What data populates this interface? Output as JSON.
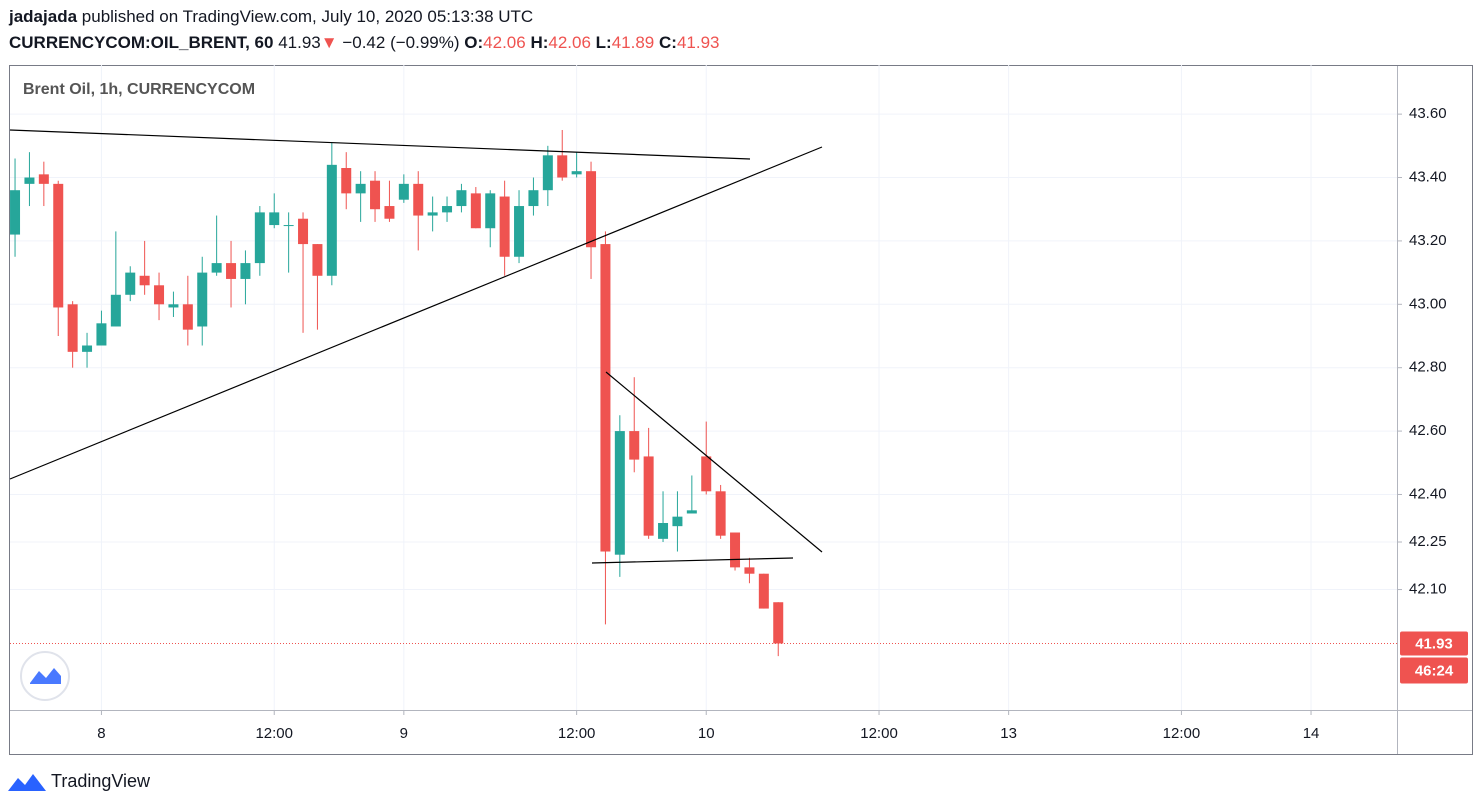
{
  "header": {
    "author": "jadajada",
    "published": "published on TradingView.com, July 10, 2020 05:13:38 UTC",
    "symbol": "CURRENCYCOM:OIL_BRENT, 60",
    "last": "41.93",
    "arrow": "▼",
    "change": "−0.42 (−0.99%)",
    "o_label": "O:",
    "o": "42.06",
    "h_label": "H:",
    "h": "42.06",
    "l_label": "L:",
    "l": "41.89",
    "c_label": "C:",
    "c": "41.93"
  },
  "chart_data": {
    "type": "candlestick",
    "title": "Brent Oil, 1h, CURRENCYCOM",
    "up_color": "#26a69a",
    "down_color": "#ef5350",
    "grid": true,
    "x": [
      0,
      1,
      2,
      3,
      4,
      5,
      6,
      7,
      8,
      9,
      10,
      11,
      12,
      13,
      14,
      15,
      16,
      17,
      18,
      19,
      20,
      21,
      22,
      23,
      24,
      25,
      26,
      27,
      28,
      29,
      30,
      31,
      32,
      33,
      34,
      35,
      36,
      37,
      38,
      39,
      40,
      41,
      42,
      43,
      44,
      45,
      46,
      47,
      48,
      49,
      50,
      51,
      52,
      53
    ],
    "open": [
      43.22,
      43.38,
      43.41,
      43.38,
      43.0,
      42.85,
      42.87,
      42.93,
      43.03,
      43.09,
      43.06,
      42.99,
      43.0,
      42.93,
      43.1,
      43.13,
      43.08,
      43.13,
      43.25,
      43.25,
      43.27,
      43.19,
      43.09,
      43.43,
      43.35,
      43.39,
      43.31,
      43.33,
      43.38,
      43.28,
      43.29,
      43.31,
      43.35,
      43.24,
      43.34,
      43.15,
      43.31,
      43.36,
      43.47,
      43.41,
      43.42,
      43.19,
      42.21,
      42.6,
      42.52,
      42.26,
      42.3,
      42.34,
      42.52,
      42.41,
      42.28,
      42.17,
      42.15,
      42.06
    ],
    "high": [
      43.46,
      43.48,
      43.45,
      43.39,
      43.01,
      42.91,
      42.98,
      43.23,
      43.12,
      43.2,
      43.1,
      43.04,
      43.09,
      43.15,
      43.28,
      43.2,
      43.17,
      43.31,
      43.35,
      43.29,
      43.29,
      43.19,
      43.51,
      43.48,
      43.42,
      43.42,
      43.39,
      43.41,
      43.42,
      43.34,
      43.34,
      43.38,
      43.37,
      43.36,
      43.39,
      43.36,
      43.4,
      43.5,
      43.55,
      43.48,
      43.45,
      43.23,
      42.65,
      42.77,
      42.61,
      42.41,
      42.41,
      42.46,
      42.63,
      42.43,
      42.28,
      42.2,
      42.15,
      42.06
    ],
    "low": [
      43.15,
      43.31,
      43.31,
      42.9,
      42.8,
      42.8,
      42.87,
      42.93,
      43.01,
      43.03,
      42.95,
      42.96,
      42.87,
      42.87,
      43.09,
      42.99,
      43.0,
      43.09,
      43.24,
      43.1,
      42.91,
      42.92,
      43.06,
      43.3,
      43.26,
      43.26,
      43.26,
      43.32,
      43.17,
      43.23,
      43.26,
      43.29,
      43.24,
      43.18,
      43.09,
      43.13,
      43.28,
      43.31,
      43.39,
      43.4,
      43.08,
      41.99,
      42.14,
      42.47,
      42.26,
      42.25,
      42.22,
      42.34,
      42.4,
      42.26,
      42.16,
      42.12,
      42.04,
      41.89
    ],
    "close": [
      43.36,
      43.4,
      43.38,
      42.99,
      42.85,
      42.87,
      42.94,
      43.03,
      43.1,
      43.06,
      43.0,
      43.0,
      42.92,
      43.1,
      43.13,
      43.08,
      43.13,
      43.29,
      43.29,
      43.25,
      43.19,
      43.09,
      43.44,
      43.35,
      43.38,
      43.3,
      43.27,
      43.38,
      43.28,
      43.29,
      43.31,
      43.36,
      43.24,
      43.35,
      43.15,
      43.31,
      43.36,
      43.47,
      43.4,
      43.42,
      43.18,
      42.22,
      42.6,
      42.51,
      42.27,
      42.31,
      42.33,
      42.35,
      42.41,
      42.27,
      42.17,
      42.15,
      42.04,
      41.93
    ],
    "xlim": [
      -0.35,
      95.97
    ],
    "xticks": [
      {
        "value": 6,
        "label": "8"
      },
      {
        "value": 18,
        "label": "12:00"
      },
      {
        "value": 27,
        "label": "9"
      },
      {
        "value": 39,
        "label": "12:00"
      },
      {
        "value": 48,
        "label": "10"
      },
      {
        "value": 60,
        "label": "12:00"
      },
      {
        "value": 69,
        "label": "13"
      },
      {
        "value": 81,
        "label": "12:00"
      },
      {
        "value": 90,
        "label": "14"
      }
    ],
    "ylim": [
      41.72,
      43.755
    ],
    "yticks": [
      {
        "value": 43.6,
        "label": "43.60"
      },
      {
        "value": 43.4,
        "label": "43.40"
      },
      {
        "value": 43.2,
        "label": "43.20"
      },
      {
        "value": 43.0,
        "label": "43.00"
      },
      {
        "value": 42.8,
        "label": "42.80"
      },
      {
        "value": 42.6,
        "label": "42.60"
      },
      {
        "value": 42.4,
        "label": "42.40"
      },
      42.25,
      {
        "value": 42.1,
        "label": "42.10"
      }
    ],
    "last_price": 41.93,
    "countdown": "46:24"
  },
  "footer": {
    "brand": "TradingView"
  }
}
